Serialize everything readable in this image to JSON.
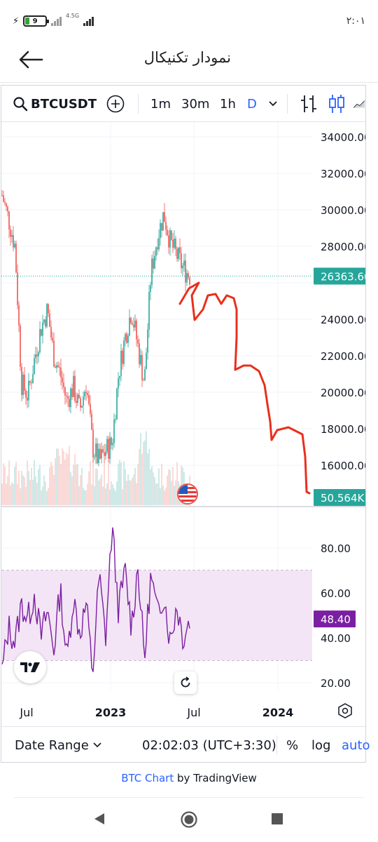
{
  "status": {
    "battery": "9",
    "network": "4.5G",
    "time": "۲:۰۱"
  },
  "appbar": {
    "title": "نمودار تکنیکال"
  },
  "toolbar": {
    "symbol": "BTCUSDT",
    "intervals": [
      "1m",
      "30m",
      "1h",
      "D"
    ],
    "active_interval": "D"
  },
  "price_axis": {
    "ticks": [
      "34000.00",
      "32000.00",
      "30000.00",
      "28000.00",
      "24000.00",
      "22000.00",
      "20000.00",
      "18000.00",
      "16000.00"
    ],
    "last_price": "26363.60",
    "volume": "50.564K"
  },
  "rsi_axis": {
    "ticks": [
      "80.00",
      "60.00",
      "40.00",
      "20.00"
    ],
    "value": "48.40"
  },
  "time_axis": {
    "ticks": [
      "Jul",
      "2023",
      "Jul",
      "2024"
    ]
  },
  "footer": {
    "date_range": "Date Range",
    "clock": "02:02:03 (UTC+3:30)",
    "percent": "%",
    "log": "log",
    "auto": "auto"
  },
  "attribution": {
    "link": "BTC Chart",
    "rest": " by TradingView"
  },
  "colors": {
    "up": "#26a69a",
    "down": "#ef5350",
    "accent": "#2962ff",
    "rsi": "#7b1fa2",
    "rsi_band": "#e1bee7",
    "drawing": "#e8301c",
    "last_price_label": "#26a69a"
  },
  "chart_data": {
    "type": "candlestick",
    "price_range": [
      15000,
      35000
    ],
    "rsi_range": [
      15,
      95
    ],
    "rsi_levels": [
      30,
      70
    ],
    "last_price": 26363.6,
    "rsi_last": 48.4,
    "series": [
      {
        "name": "BTCUSDT",
        "values": [
          30800,
          29500,
          28000,
          20500,
          19800,
          21800,
          23500,
          24500,
          22000,
          21000,
          19500,
          20300,
          19000,
          20500,
          17000,
          16200,
          16800,
          17200,
          21000,
          23000,
          24500,
          22500,
          20500,
          26500,
          28500,
          29800,
          28200,
          27500,
          26800,
          26400
        ]
      },
      {
        "name": "RSI",
        "values": [
          25,
          45,
          38,
          55,
          48,
          60,
          40,
          52,
          35,
          62,
          30,
          58,
          42,
          55,
          24,
          68,
          40,
          90,
          52,
          70,
          45,
          72,
          30,
          68,
          50,
          60,
          38,
          55,
          40,
          48.4
        ]
      }
    ]
  }
}
